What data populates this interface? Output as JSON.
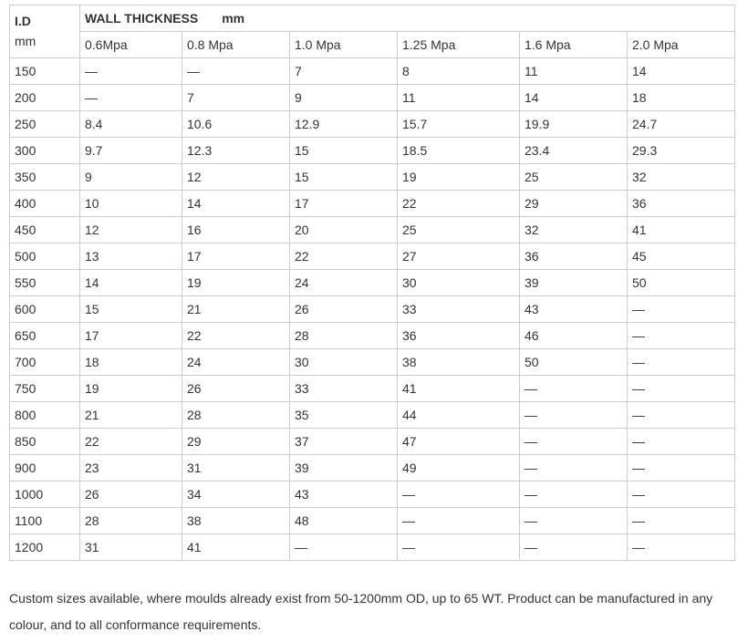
{
  "header": {
    "id_label": "I.D",
    "id_unit": "mm",
    "wall_thickness": "WALL THICKNESS",
    "wall_unit": "mm",
    "pressures": [
      "0.6Mpa",
      "0.8 Mpa",
      "1.0 Mpa",
      "1.25 Mpa",
      "1.6 Mpa",
      "2.0 Mpa"
    ]
  },
  "rows": [
    [
      "150",
      "—",
      "—",
      "7",
      "8",
      "11",
      "14"
    ],
    [
      "200",
      "—",
      "7",
      "9",
      "11",
      "14",
      "18"
    ],
    [
      "250",
      "8.4",
      "10.6",
      "12.9",
      "15.7",
      "19.9",
      "24.7"
    ],
    [
      "300",
      "9.7",
      "12.3",
      "15",
      "18.5",
      "23.4",
      "29.3"
    ],
    [
      "350",
      "9",
      "12",
      "15",
      "19",
      "25",
      "32"
    ],
    [
      "400",
      "10",
      "14",
      "17",
      "22",
      "29",
      "36"
    ],
    [
      "450",
      "12",
      "16",
      "20",
      "25",
      "32",
      "41"
    ],
    [
      "500",
      "13",
      "17",
      "22",
      "27",
      "36",
      "45"
    ],
    [
      "550",
      "14",
      "19",
      "24",
      "30",
      "39",
      "50"
    ],
    [
      "600",
      "15",
      "21",
      "26",
      "33",
      "43",
      "—"
    ],
    [
      "650",
      "17",
      "22",
      "28",
      "36",
      "46",
      "—"
    ],
    [
      "700",
      "18",
      "24",
      "30",
      "38",
      "50",
      "—"
    ],
    [
      "750",
      "19",
      "26",
      "33",
      "41",
      "—",
      "—"
    ],
    [
      "800",
      "21",
      "28",
      "35",
      "44",
      "—",
      "—"
    ],
    [
      "850",
      "22",
      "29",
      "37",
      "47",
      "—",
      "—"
    ],
    [
      "900",
      "23",
      "31",
      "39",
      "49",
      "—",
      "—"
    ],
    [
      "1000",
      "26",
      "34",
      "43",
      "—",
      "—",
      "—"
    ],
    [
      "1100",
      "28",
      "38",
      "48",
      "—",
      "—",
      "—"
    ],
    [
      "1200",
      "31",
      "41",
      "—",
      "—",
      "—",
      "—"
    ]
  ],
  "note": "Custom sizes available, where moulds already exist from 50-1200mm OD, up to 65 WT. Product can be manufactured in any colour, and to all conformance requirements."
}
